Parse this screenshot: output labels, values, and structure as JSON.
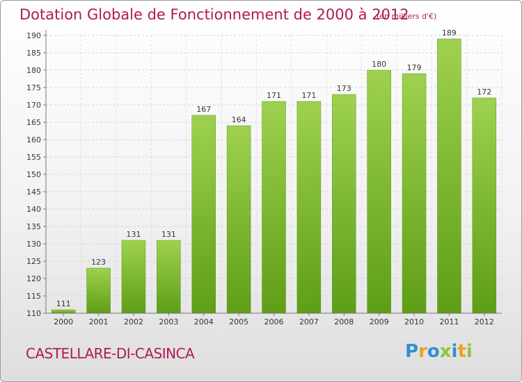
{
  "header": {
    "title": "Dotation Globale de Fonctionnement de 2000 à 2012",
    "subtitle": "(en milliers d'€)"
  },
  "commune": "CASTELLARE-DI-CASINCA",
  "logo": {
    "text": "Proxiti",
    "letters": [
      {
        "ch": "P",
        "color": "#2f8fd6"
      },
      {
        "ch": "r",
        "color": "#f0a020"
      },
      {
        "ch": "o",
        "color": "#2f8fd6"
      },
      {
        "ch": "x",
        "color": "#8cc63f"
      },
      {
        "ch": "i",
        "color": "#2f8fd6"
      },
      {
        "ch": "t",
        "color": "#f0a020"
      },
      {
        "ch": "i",
        "color": "#8cc63f"
      }
    ]
  },
  "chart_data": {
    "type": "bar",
    "title": "Dotation Globale de Fonctionnement de 2000 à 2012",
    "subtitle": "(en milliers d'€)",
    "xlabel": "",
    "ylabel": "",
    "categories": [
      "2000",
      "2001",
      "2002",
      "2003",
      "2004",
      "2005",
      "2006",
      "2007",
      "2008",
      "2009",
      "2010",
      "2011",
      "2012"
    ],
    "values": [
      111,
      123,
      131,
      131,
      167,
      164,
      171,
      171,
      173,
      180,
      179,
      189,
      172
    ],
    "ylim": [
      110,
      190
    ],
    "yticks": [
      110,
      115,
      120,
      125,
      130,
      135,
      140,
      145,
      150,
      155,
      160,
      165,
      170,
      175,
      180,
      185,
      190
    ],
    "grid": true,
    "colors": {
      "bar_light": "#9ed14f",
      "bar_dark": "#5e9e16",
      "title": "#b0185a"
    }
  }
}
